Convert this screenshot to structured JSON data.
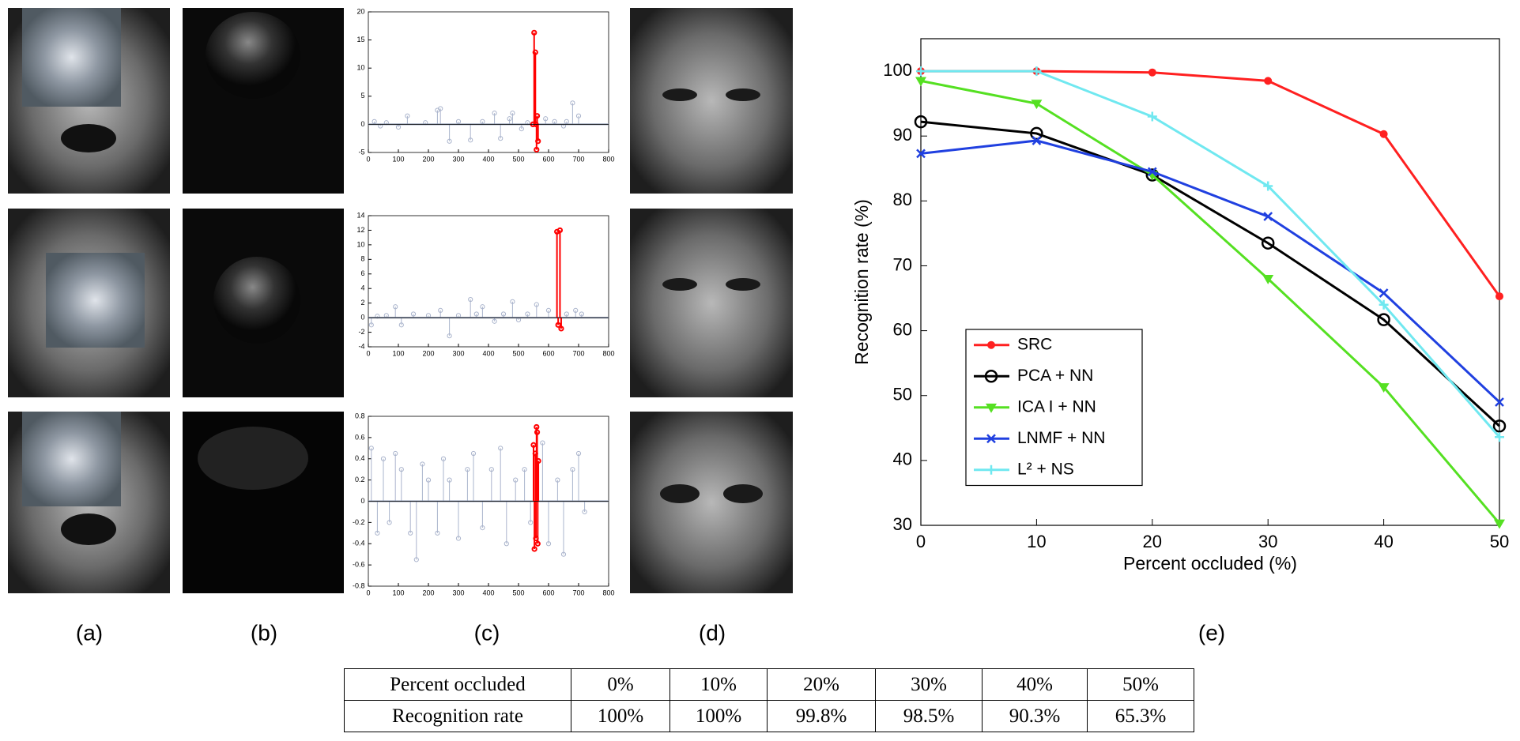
{
  "chart_data": [
    {
      "type": "stem",
      "xlim": [
        0,
        800
      ],
      "xticks": [
        0,
        100,
        200,
        300,
        400,
        500,
        600,
        700,
        800
      ],
      "ylim": [
        -5,
        20
      ],
      "yticks": [
        -5,
        0,
        5,
        10,
        15,
        20
      ],
      "series": [
        {
          "color": "#aab4cc",
          "x": [
            20,
            40,
            60,
            100,
            130,
            190,
            230,
            240,
            270,
            300,
            340,
            380,
            420,
            440,
            470,
            480,
            510,
            530,
            590,
            620,
            650,
            660,
            680,
            700
          ],
          "values": [
            0.5,
            -0.3,
            0.3,
            -0.5,
            1.5,
            0.3,
            2.5,
            2.8,
            -3,
            0.5,
            -2.8,
            0.5,
            2,
            -2.5,
            1,
            2,
            -0.8,
            0.3,
            1,
            0.5,
            -0.3,
            0.5,
            3.8,
            1.5
          ]
        },
        {
          "color": "#ff0000",
          "x": [
            548,
            552,
            556,
            558,
            560,
            562,
            565
          ],
          "values": [
            0,
            16.3,
            12.8,
            0,
            -4.5,
            1.5,
            -3
          ]
        }
      ]
    },
    {
      "type": "stem",
      "xlim": [
        0,
        800
      ],
      "xticks": [
        0,
        100,
        200,
        300,
        400,
        500,
        600,
        700,
        800
      ],
      "ylim": [
        -4,
        14
      ],
      "yticks": [
        -4,
        -2,
        0,
        2,
        4,
        6,
        8,
        10,
        12,
        14
      ],
      "series": [
        {
          "color": "#aab4cc",
          "x": [
            10,
            30,
            60,
            90,
            110,
            150,
            200,
            240,
            270,
            300,
            340,
            360,
            380,
            420,
            450,
            480,
            500,
            530,
            560,
            600,
            660,
            690,
            710
          ],
          "values": [
            -1,
            0.2,
            0.3,
            1.5,
            -1,
            0.5,
            0.3,
            1,
            -2.5,
            0.3,
            2.5,
            0.5,
            1.5,
            -0.5,
            0.5,
            2.2,
            -0.3,
            0.5,
            1.8,
            1,
            0.5,
            1,
            0.5
          ]
        },
        {
          "color": "#ff0000",
          "x": [
            628,
            632,
            638,
            642
          ],
          "values": [
            11.8,
            -1,
            12,
            -1.5
          ]
        }
      ]
    },
    {
      "type": "stem",
      "xlim": [
        0,
        800
      ],
      "xticks": [
        0,
        100,
        200,
        300,
        400,
        500,
        600,
        700,
        800
      ],
      "ylim": [
        -0.8,
        0.8
      ],
      "yticks": [
        -0.8,
        -0.6,
        -0.4,
        -0.2,
        0,
        0.2,
        0.4,
        0.6,
        0.8
      ],
      "series": [
        {
          "color": "#aab4cc",
          "x": [
            10,
            30,
            50,
            70,
            90,
            110,
            140,
            160,
            180,
            200,
            230,
            250,
            270,
            300,
            330,
            350,
            380,
            410,
            440,
            460,
            490,
            520,
            540,
            580,
            600,
            630,
            650,
            680,
            700,
            720
          ],
          "values": [
            0.5,
            -0.3,
            0.4,
            -0.2,
            0.45,
            0.3,
            -0.3,
            -0.55,
            0.35,
            0.2,
            -0.3,
            0.4,
            0.2,
            -0.35,
            0.3,
            0.45,
            -0.25,
            0.3,
            0.5,
            -0.4,
            0.2,
            0.3,
            -0.2,
            0.55,
            -0.4,
            0.2,
            -0.5,
            0.3,
            0.45,
            -0.1
          ]
        },
        {
          "color": "#ff0000",
          "x": [
            550,
            553,
            556,
            558,
            560,
            562,
            564,
            566
          ],
          "values": [
            0.53,
            -0.45,
            0.45,
            -0.35,
            0.7,
            0.65,
            -0.4,
            0.38
          ]
        }
      ]
    },
    {
      "type": "line",
      "x_label": "Percent occluded (%)",
      "y_label": "Recognition rate (%)",
      "x": [
        0,
        10,
        20,
        30,
        40,
        50
      ],
      "xlim": [
        0,
        50
      ],
      "xticks": [
        0,
        10,
        20,
        30,
        40,
        50
      ],
      "ylim": [
        30,
        105
      ],
      "yticks": [
        30,
        40,
        50,
        60,
        70,
        80,
        90,
        100
      ],
      "legend": "left",
      "series": [
        {
          "name": "SRC",
          "color": "#ff2020",
          "marker": "dot",
          "values": [
            100,
            100,
            99.8,
            98.5,
            90.3,
            65.3
          ]
        },
        {
          "name": "PCA + NN",
          "color": "#000000",
          "marker": "circle",
          "values": [
            92.2,
            90.4,
            84,
            73.5,
            61.7,
            45.3
          ]
        },
        {
          "name": "ICA I + NN",
          "color": "#55e022",
          "marker": "triangle",
          "values": [
            98.5,
            95,
            84,
            68,
            51.3,
            30.3
          ]
        },
        {
          "name": "LNMF + NN",
          "color": "#2040e0",
          "marker": "x",
          "values": [
            87.3,
            89.3,
            84.5,
            77.6,
            65.8,
            49
          ]
        },
        {
          "name": "L² + NS",
          "color": "#70e8f0",
          "marker": "plus",
          "values": [
            100,
            100,
            93,
            82.3,
            64,
            43.6
          ]
        }
      ]
    }
  ],
  "panel_labels": [
    "(a)",
    "(b)",
    "(c)",
    "(d)",
    "(e)"
  ],
  "table": {
    "rows": [
      [
        "Percent occluded",
        "0%",
        "10%",
        "20%",
        "30%",
        "40%",
        "50%"
      ],
      [
        "Recognition rate",
        "100%",
        "100%",
        "99.8%",
        "98.5%",
        "90.3%",
        "65.3%"
      ]
    ]
  }
}
